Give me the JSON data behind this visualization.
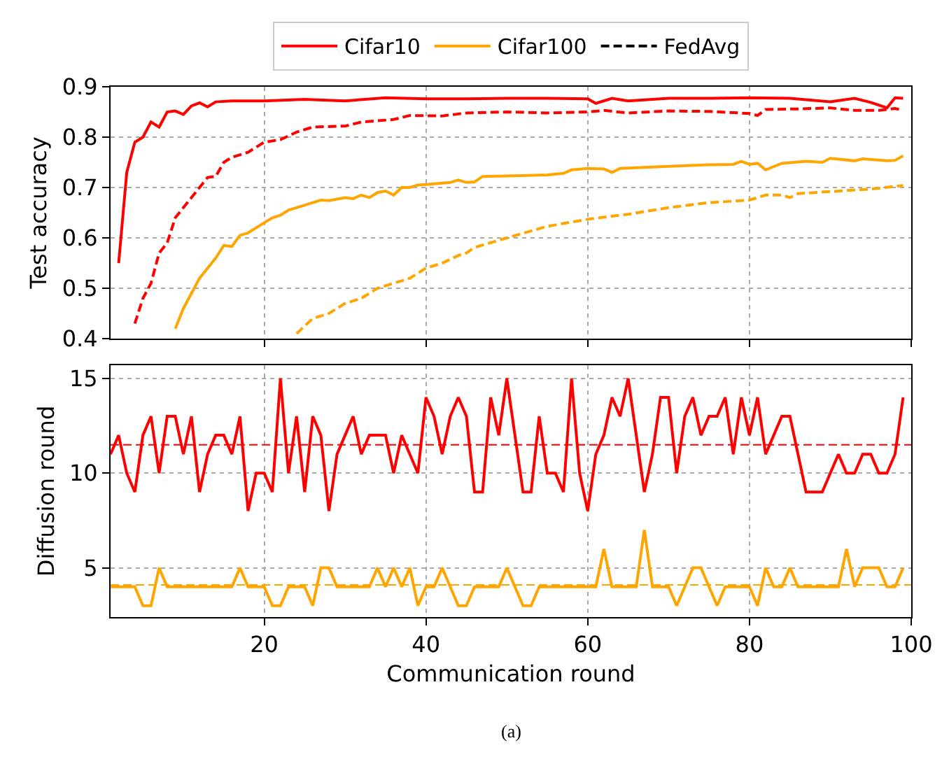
{
  "chart_data": [
    {
      "type": "line",
      "ylabel": "Test accuracy",
      "xlim": [
        1,
        100
      ],
      "xticks": [
        20,
        40,
        60,
        80,
        100
      ],
      "ylim": [
        0.4,
        0.9
      ],
      "yticks": [
        0.4,
        0.5,
        0.6,
        0.7,
        0.8,
        0.9
      ],
      "tick_labels": "y",
      "grid": true,
      "legend": "top",
      "marker": "none",
      "series": [
        {
          "name": "Cifar10",
          "color": "#ff0000",
          "line_style": "solid",
          "x": [
            2,
            3,
            4,
            5,
            6,
            7,
            8,
            9,
            10,
            11,
            12,
            13,
            14,
            16,
            20,
            25,
            30,
            35,
            40,
            45,
            50,
            55,
            60,
            61,
            63,
            65,
            70,
            75,
            80,
            85,
            90,
            93,
            95,
            97,
            98,
            99
          ],
          "values": [
            0.55,
            0.73,
            0.79,
            0.8,
            0.83,
            0.82,
            0.85,
            0.852,
            0.845,
            0.862,
            0.868,
            0.86,
            0.87,
            0.872,
            0.872,
            0.875,
            0.872,
            0.878,
            0.876,
            0.876,
            0.877,
            0.877,
            0.876,
            0.867,
            0.877,
            0.872,
            0.877,
            0.877,
            0.878,
            0.877,
            0.87,
            0.877,
            0.869,
            0.858,
            0.878,
            0.877
          ]
        },
        {
          "name": "Cifar100",
          "color": "#ffa500",
          "line_style": "solid",
          "x": [
            9,
            10,
            11,
            12,
            13,
            14,
            15,
            16,
            17,
            18,
            19,
            20,
            21,
            22,
            23,
            24,
            26,
            27,
            28,
            30,
            31,
            32,
            33,
            34,
            35,
            36,
            37,
            38,
            39,
            40,
            43,
            44,
            45,
            46,
            47,
            50,
            55,
            57,
            58,
            60,
            62,
            63,
            64,
            70,
            75,
            78,
            79,
            80,
            81,
            82,
            84,
            87,
            89,
            90,
            93,
            94,
            97,
            98,
            99
          ],
          "values": [
            0.42,
            0.46,
            0.49,
            0.52,
            0.54,
            0.56,
            0.585,
            0.583,
            0.605,
            0.61,
            0.62,
            0.63,
            0.64,
            0.645,
            0.655,
            0.66,
            0.67,
            0.675,
            0.674,
            0.68,
            0.678,
            0.685,
            0.68,
            0.69,
            0.693,
            0.685,
            0.7,
            0.7,
            0.705,
            0.706,
            0.71,
            0.715,
            0.71,
            0.711,
            0.722,
            0.723,
            0.725,
            0.728,
            0.735,
            0.738,
            0.737,
            0.73,
            0.738,
            0.742,
            0.745,
            0.746,
            0.752,
            0.746,
            0.748,
            0.735,
            0.748,
            0.752,
            0.75,
            0.758,
            0.753,
            0.757,
            0.753,
            0.754,
            0.763
          ]
        },
        {
          "name": "FedAvg",
          "color": "#000000",
          "line_style": "dashed"
        },
        {
          "color": "#ff0000",
          "line_style": "dashed",
          "x": [
            4,
            5,
            6,
            7,
            8,
            9,
            10,
            11,
            12,
            13,
            14,
            15,
            16,
            18,
            20,
            22,
            24,
            26,
            30,
            32,
            36,
            38,
            42,
            45,
            50,
            55,
            60,
            62,
            65,
            70,
            75,
            80,
            81,
            82,
            86,
            90,
            93,
            96,
            98,
            99
          ],
          "values": [
            0.43,
            0.48,
            0.51,
            0.57,
            0.59,
            0.64,
            0.66,
            0.68,
            0.7,
            0.72,
            0.722,
            0.75,
            0.76,
            0.77,
            0.79,
            0.795,
            0.81,
            0.82,
            0.822,
            0.83,
            0.835,
            0.843,
            0.842,
            0.848,
            0.85,
            0.848,
            0.85,
            0.853,
            0.848,
            0.852,
            0.851,
            0.847,
            0.843,
            0.855,
            0.856,
            0.858,
            0.853,
            0.853,
            0.857,
            0.853
          ]
        },
        {
          "color": "#ffa500",
          "line_style": "dashed",
          "x": [
            24,
            26,
            28,
            30,
            32,
            34,
            36,
            38,
            39,
            40,
            42,
            44,
            45,
            46,
            50,
            55,
            60,
            65,
            70,
            75,
            80,
            82,
            84,
            85,
            86,
            90,
            95,
            99
          ],
          "values": [
            0.41,
            0.44,
            0.45,
            0.47,
            0.48,
            0.5,
            0.51,
            0.52,
            0.53,
            0.54,
            0.55,
            0.565,
            0.57,
            0.581,
            0.6,
            0.623,
            0.637,
            0.647,
            0.66,
            0.67,
            0.675,
            0.685,
            0.685,
            0.68,
            0.688,
            0.692,
            0.697,
            0.704
          ]
        }
      ]
    },
    {
      "type": "line",
      "xlabel": "Communication round",
      "ylabel": "Diffusion round",
      "xlim": [
        1,
        100
      ],
      "xticks": [
        20,
        40,
        60,
        80,
        100
      ],
      "ylim": [
        2.4,
        15.7
      ],
      "yticks": [
        5,
        10,
        15
      ],
      "grid": true,
      "marker": "none",
      "annotations": [
        "(a)"
      ],
      "ref_lines": [
        {
          "axis": "y",
          "value": 11.5,
          "color": "#ff0000",
          "line_style": "dashed"
        },
        {
          "axis": "y",
          "value": 4.1,
          "color": "#ffa500",
          "line_style": "dashed"
        }
      ],
      "x": [
        1,
        2,
        3,
        4,
        5,
        6,
        7,
        8,
        9,
        10,
        11,
        12,
        13,
        14,
        15,
        16,
        17,
        18,
        19,
        20,
        21,
        22,
        23,
        24,
        25,
        26,
        27,
        28,
        29,
        30,
        31,
        32,
        33,
        34,
        35,
        36,
        37,
        38,
        39,
        40,
        41,
        42,
        43,
        44,
        45,
        46,
        47,
        48,
        49,
        50,
        51,
        52,
        53,
        54,
        55,
        56,
        57,
        58,
        59,
        60,
        61,
        62,
        63,
        64,
        65,
        66,
        67,
        68,
        69,
        70,
        71,
        72,
        73,
        74,
        75,
        76,
        77,
        78,
        79,
        80,
        81,
        82,
        83,
        84,
        85,
        86,
        87,
        88,
        89,
        90,
        91,
        92,
        93,
        94,
        95,
        96,
        97,
        98,
        99
      ],
      "series": [
        {
          "color": "#ff0000",
          "line_style": "solid",
          "values": [
            11,
            12,
            10,
            9,
            12,
            13,
            10,
            13,
            13,
            11,
            13,
            9,
            11,
            12,
            12,
            11,
            13,
            8,
            10,
            10,
            9,
            15,
            10,
            13,
            9,
            13,
            12,
            8,
            11,
            12,
            13,
            11,
            12,
            12,
            12,
            10,
            12,
            11,
            10,
            14,
            13,
            11,
            13,
            14,
            13,
            9,
            9,
            14,
            12,
            15,
            12,
            9,
            9,
            13,
            10,
            10,
            9,
            15,
            10,
            8,
            11,
            12,
            14,
            13,
            15,
            12,
            9,
            11,
            14,
            14,
            10,
            13,
            14,
            12,
            13,
            13,
            14,
            11,
            14,
            12,
            14,
            11,
            12,
            13,
            13,
            11,
            9,
            9,
            9,
            10,
            11,
            10,
            10,
            11,
            11,
            10,
            10,
            11,
            14
          ]
        },
        {
          "color": "#ffa500",
          "line_style": "solid",
          "values": [
            4,
            4,
            4,
            4,
            3,
            3,
            5,
            4,
            4,
            4,
            4,
            4,
            4,
            4,
            4,
            4,
            5,
            4,
            4,
            4,
            3,
            3,
            4,
            4,
            4,
            3,
            5,
            5,
            4,
            4,
            4,
            4,
            4,
            5,
            4,
            5,
            4,
            5,
            3,
            4,
            4,
            5,
            4,
            3,
            3,
            4,
            4,
            4,
            4,
            5,
            4,
            3,
            3,
            4,
            4,
            4,
            4,
            4,
            4,
            4,
            4,
            6,
            4,
            4,
            4,
            4,
            7,
            4,
            4,
            4,
            3,
            4,
            5,
            5,
            4,
            3,
            4,
            4,
            4,
            4,
            3,
            5,
            4,
            4,
            5,
            4,
            4,
            4,
            4,
            4,
            4,
            6,
            4,
            5,
            5,
            5,
            4,
            4,
            5
          ]
        }
      ]
    }
  ]
}
